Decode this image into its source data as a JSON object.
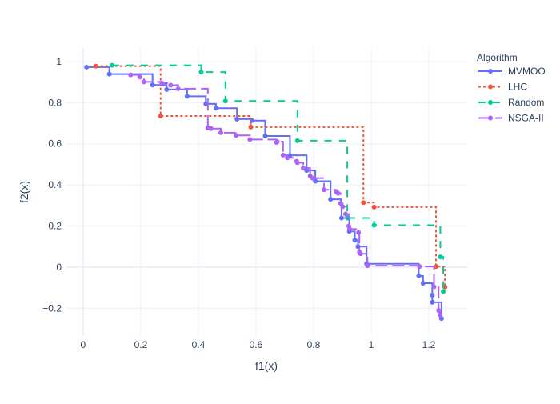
{
  "chart_data": {
    "type": "line",
    "title": "",
    "xlabel": "f1(x)",
    "ylabel": "f2(x)",
    "xlim": [
      -0.058,
      1.336
    ],
    "ylim": [
      -0.335,
      1.066
    ],
    "xticks": [
      0,
      0.2,
      0.4,
      0.6,
      0.8,
      1,
      1.2
    ],
    "xtick_labels": [
      "0",
      "0.2",
      "0.4",
      "0.6",
      "0.8",
      "1",
      "1.2"
    ],
    "yticks": [
      -0.2,
      0,
      0.2,
      0.4,
      0.6,
      0.8,
      1
    ],
    "ytick_labels": [
      "−0.2",
      "0",
      "0.2",
      "0.4",
      "0.6",
      "0.8",
      "1"
    ],
    "grid": true,
    "line_shape": "hv",
    "legend": {
      "title": "Algorithm",
      "placement": "right"
    },
    "series": [
      {
        "name": "MVMOO",
        "color": "#636efa",
        "dash": "solid",
        "x": [
          0.012,
          0.091,
          0.241,
          0.29,
          0.361,
          0.426,
          0.461,
          0.534,
          0.586,
          0.632,
          0.718,
          0.776,
          0.806,
          0.859,
          0.897,
          0.924,
          0.943,
          0.954,
          0.984,
          1.165,
          1.18,
          1.212,
          1.212,
          1.244
        ],
        "y": [
          0.973,
          0.939,
          0.886,
          0.864,
          0.831,
          0.794,
          0.773,
          0.72,
          0.713,
          0.638,
          0.544,
          0.47,
          0.418,
          0.33,
          0.239,
          0.174,
          0.131,
          0.1,
          0.016,
          -0.043,
          -0.078,
          -0.136,
          -0.171,
          -0.25
        ]
      },
      {
        "name": "LHC",
        "color": "#EF553B",
        "dash": "dot",
        "x": [
          0.044,
          0.269,
          0.582,
          0.973,
          1.01,
          1.225,
          1.256
        ],
        "y": [
          0.978,
          0.735,
          0.681,
          0.314,
          0.292,
          0.003,
          -0.097
        ]
      },
      {
        "name": "Random",
        "color": "#00cc96",
        "dash": "dash",
        "x": [
          0.1,
          0.41,
          0.494,
          0.744,
          0.917,
          1.01,
          1.24,
          1.25
        ],
        "y": [
          0.982,
          0.949,
          0.808,
          0.615,
          0.239,
          0.204,
          0.05,
          -0.119
        ]
      },
      {
        "name": "NSGA-II",
        "color": "#ab63fa",
        "dash": "longdash",
        "x": [
          0.165,
          0.197,
          0.211,
          0.273,
          0.304,
          0.33,
          0.433,
          0.444,
          0.478,
          0.531,
          0.579,
          0.671,
          0.674,
          0.694,
          0.709,
          0.741,
          0.744,
          0.764,
          0.788,
          0.796,
          0.836,
          0.879,
          0.885,
          0.894,
          0.901,
          0.911,
          0.922,
          0.925,
          0.956,
          0.959,
          0.963,
          0.987,
          1.168,
          1.218,
          1.234,
          1.239
        ],
        "y": [
          0.935,
          0.925,
          0.901,
          0.895,
          0.885,
          0.868,
          0.677,
          0.674,
          0.654,
          0.641,
          0.621,
          0.607,
          0.61,
          0.545,
          0.532,
          0.515,
          0.508,
          0.482,
          0.444,
          0.433,
          0.376,
          0.366,
          0.359,
          0.31,
          0.294,
          0.258,
          0.2,
          0.185,
          0.168,
          0.074,
          0.065,
          0.007,
          0.003,
          -0.096,
          -0.211,
          -0.233
        ]
      }
    ]
  }
}
